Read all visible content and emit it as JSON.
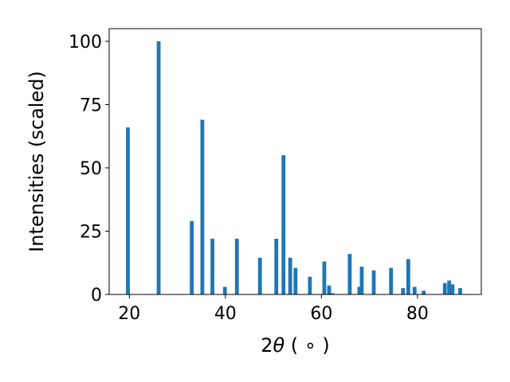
{
  "chart_data": {
    "type": "bar",
    "xlabel_main": "2",
    "xlabel_theta": "θ",
    "xlabel_unit": " ( ∘ )",
    "ylabel": "Intensities (scaled)",
    "xlim": [
      15.8,
      93.3
    ],
    "ylim": [
      0,
      105
    ],
    "x_ticks": [
      20,
      40,
      60,
      80
    ],
    "y_ticks": [
      0,
      25,
      50,
      75,
      100
    ],
    "grid": false,
    "bar_color": "#1f77b4",
    "bar_width": 0.8,
    "bars": [
      {
        "x": 19.7,
        "y": 66
      },
      {
        "x": 26.1,
        "y": 100
      },
      {
        "x": 33.0,
        "y": 29
      },
      {
        "x": 35.2,
        "y": 69
      },
      {
        "x": 37.3,
        "y": 22
      },
      {
        "x": 39.9,
        "y": 3
      },
      {
        "x": 42.4,
        "y": 22
      },
      {
        "x": 47.2,
        "y": 14.5
      },
      {
        "x": 50.6,
        "y": 22
      },
      {
        "x": 52.1,
        "y": 55
      },
      {
        "x": 53.5,
        "y": 14.5
      },
      {
        "x": 54.6,
        "y": 10.5
      },
      {
        "x": 57.6,
        "y": 7
      },
      {
        "x": 60.6,
        "y": 13
      },
      {
        "x": 61.6,
        "y": 3.5
      },
      {
        "x": 62.3,
        "y": 0.5
      },
      {
        "x": 65.9,
        "y": 16
      },
      {
        "x": 67.9,
        "y": 3
      },
      {
        "x": 68.4,
        "y": 11
      },
      {
        "x": 70.9,
        "y": 9.5
      },
      {
        "x": 74.5,
        "y": 10.5
      },
      {
        "x": 77.0,
        "y": 2.5
      },
      {
        "x": 78.1,
        "y": 14
      },
      {
        "x": 79.4,
        "y": 3
      },
      {
        "x": 81.3,
        "y": 1.5
      },
      {
        "x": 85.7,
        "y": 4.5
      },
      {
        "x": 86.6,
        "y": 5.5
      },
      {
        "x": 87.3,
        "y": 4
      },
      {
        "x": 88.9,
        "y": 2.5
      }
    ]
  }
}
